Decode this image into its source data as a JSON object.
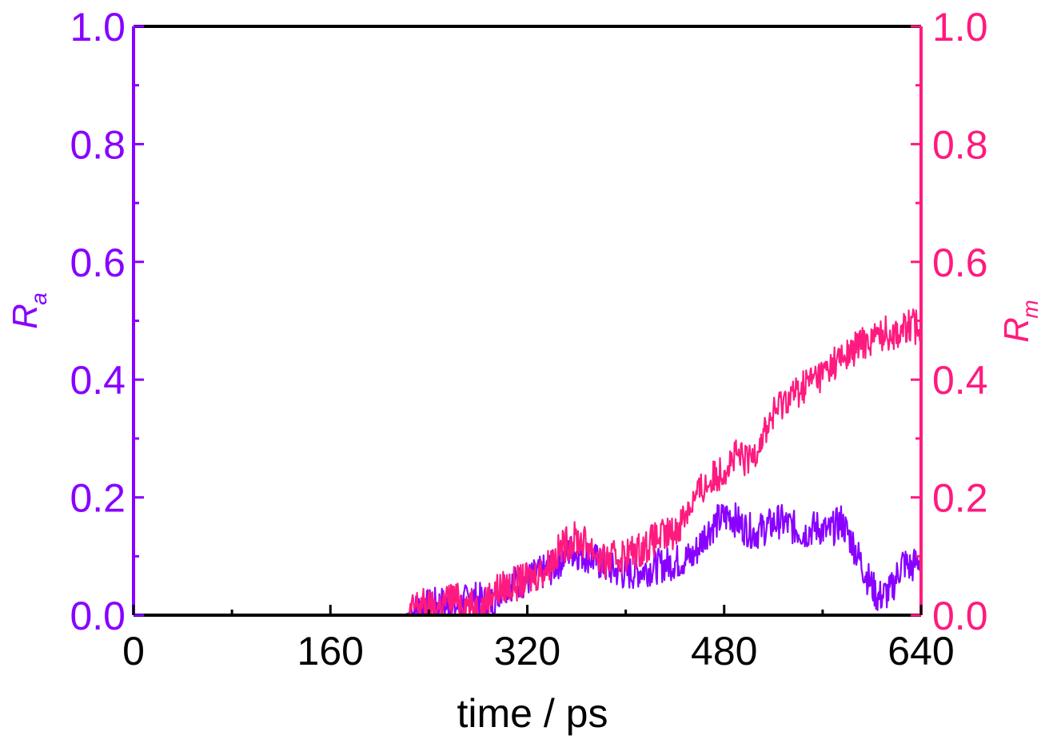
{
  "chart_data": {
    "type": "line",
    "xlabel": "time / ps",
    "xlim": [
      0,
      640
    ],
    "x_ticks": [
      "0",
      "160",
      "320",
      "480",
      "640"
    ],
    "y_left": {
      "label_main": "R",
      "label_sub": "a",
      "ylim": [
        0,
        1
      ],
      "ticks": [
        "0.0",
        "0.2",
        "0.4",
        "0.6",
        "0.8",
        "1.0"
      ],
      "color": "#8800ff"
    },
    "y_right": {
      "label_main": "R",
      "label_sub": "m",
      "ylim": [
        0,
        1
      ],
      "ticks": [
        "0.0",
        "0.2",
        "0.4",
        "0.6",
        "0.8",
        "1.0"
      ],
      "color": "#ff1a7f"
    },
    "grid": false,
    "series": [
      {
        "axis": "left",
        "color": "#8800ff",
        "points": [
          [
            0,
            0
          ],
          [
            220,
            0
          ],
          [
            230,
            0.01
          ],
          [
            250,
            0.02
          ],
          [
            260,
            0.01
          ],
          [
            275,
            0.03
          ],
          [
            290,
            0.02
          ],
          [
            300,
            0.05
          ],
          [
            320,
            0.06
          ],
          [
            340,
            0.08
          ],
          [
            355,
            0.11
          ],
          [
            370,
            0.1
          ],
          [
            385,
            0.08
          ],
          [
            400,
            0.07
          ],
          [
            420,
            0.08
          ],
          [
            440,
            0.09
          ],
          [
            455,
            0.1
          ],
          [
            465,
            0.14
          ],
          [
            475,
            0.16
          ],
          [
            485,
            0.17
          ],
          [
            495,
            0.15
          ],
          [
            505,
            0.14
          ],
          [
            515,
            0.15
          ],
          [
            525,
            0.16
          ],
          [
            535,
            0.15
          ],
          [
            545,
            0.14
          ],
          [
            555,
            0.15
          ],
          [
            565,
            0.14
          ],
          [
            575,
            0.16
          ],
          [
            585,
            0.12
          ],
          [
            595,
            0.07
          ],
          [
            605,
            0.03
          ],
          [
            615,
            0.04
          ],
          [
            625,
            0.09
          ],
          [
            632,
            0.08
          ],
          [
            640,
            0.1
          ]
        ]
      },
      {
        "axis": "right",
        "color": "#ff1a7f",
        "points": [
          [
            0,
            0
          ],
          [
            222,
            0
          ],
          [
            232,
            0.02
          ],
          [
            245,
            0.01
          ],
          [
            258,
            0.03
          ],
          [
            270,
            0.02
          ],
          [
            282,
            0.01
          ],
          [
            292,
            0.04
          ],
          [
            305,
            0.05
          ],
          [
            320,
            0.06
          ],
          [
            335,
            0.08
          ],
          [
            350,
            0.12
          ],
          [
            360,
            0.13
          ],
          [
            370,
            0.12
          ],
          [
            382,
            0.09
          ],
          [
            395,
            0.1
          ],
          [
            410,
            0.11
          ],
          [
            425,
            0.13
          ],
          [
            440,
            0.14
          ],
          [
            450,
            0.18
          ],
          [
            460,
            0.21
          ],
          [
            470,
            0.23
          ],
          [
            480,
            0.25
          ],
          [
            490,
            0.27
          ],
          [
            500,
            0.26
          ],
          [
            510,
            0.3
          ],
          [
            520,
            0.34
          ],
          [
            530,
            0.37
          ],
          [
            540,
            0.38
          ],
          [
            550,
            0.4
          ],
          [
            560,
            0.41
          ],
          [
            570,
            0.43
          ],
          [
            580,
            0.44
          ],
          [
            590,
            0.46
          ],
          [
            600,
            0.47
          ],
          [
            610,
            0.48
          ],
          [
            620,
            0.48
          ],
          [
            630,
            0.49
          ],
          [
            640,
            0.49
          ]
        ]
      }
    ]
  }
}
